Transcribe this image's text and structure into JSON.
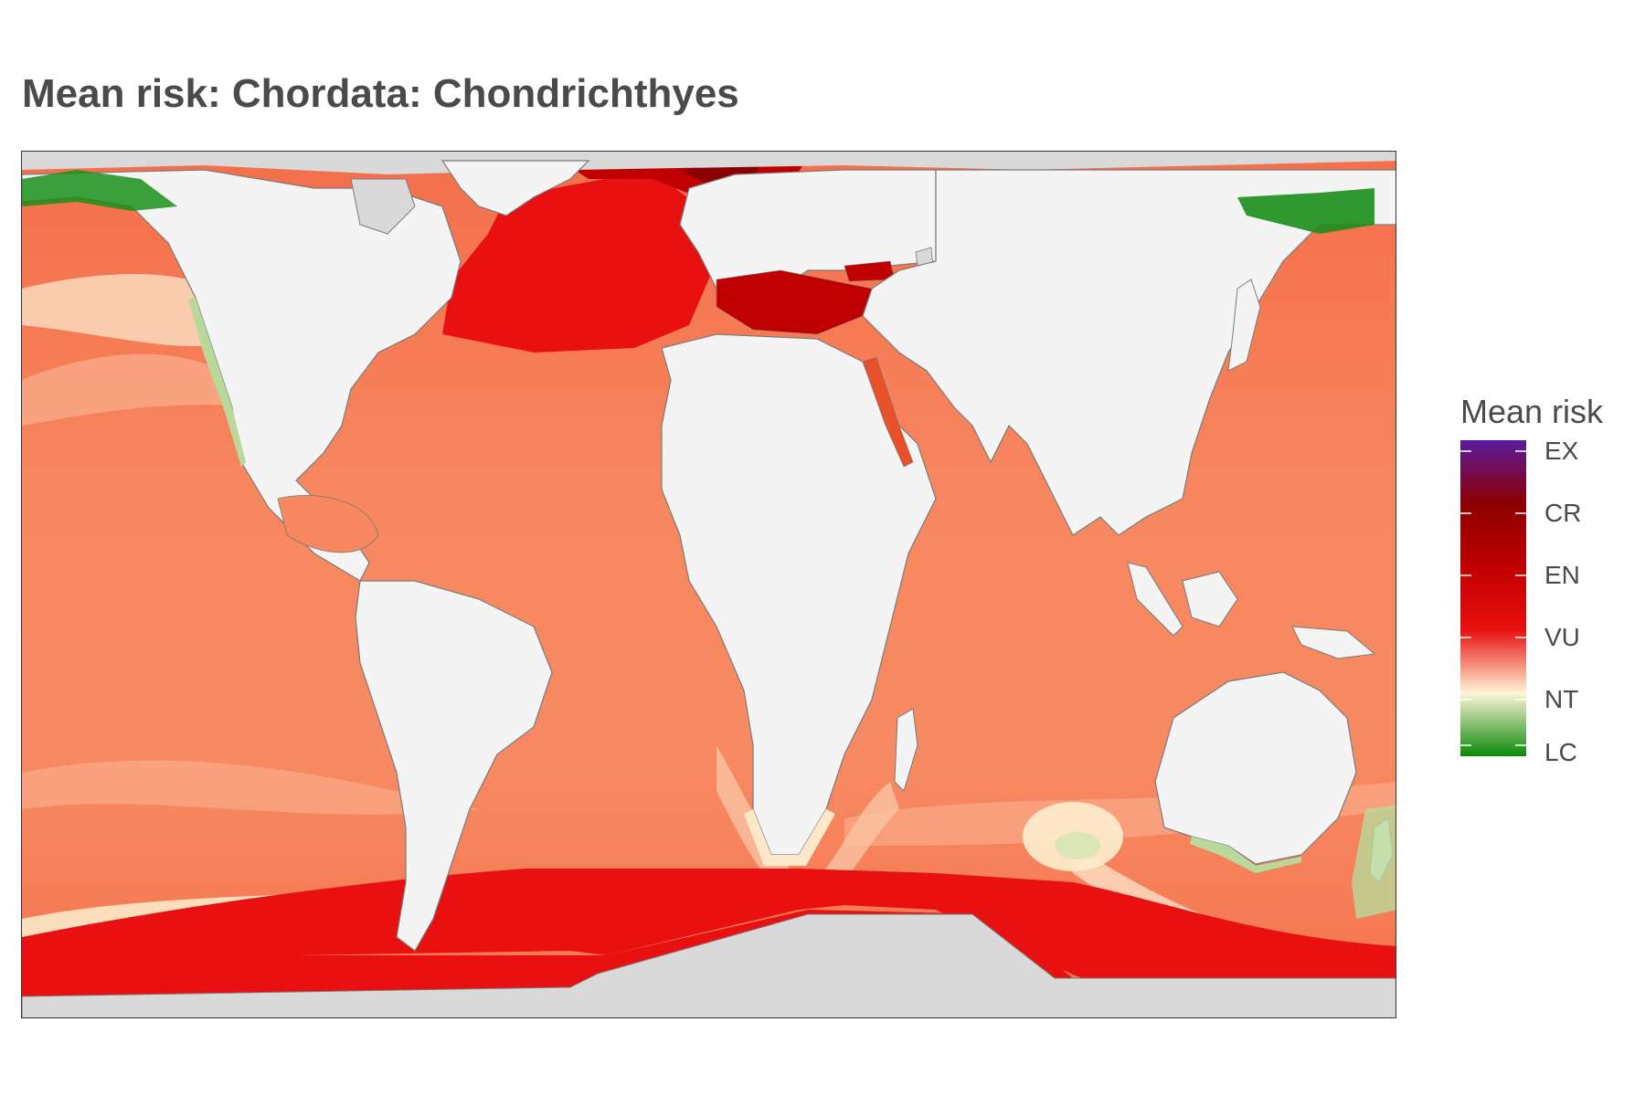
{
  "title": "Mean risk: Chordata: Chondrichthyes",
  "legend": {
    "title": "Mean risk",
    "labels": [
      "EX",
      "CR",
      "EN",
      "VU",
      "NT",
      "LC"
    ],
    "colors": [
      "#5a1a9e",
      "#8b0000",
      "#c00000",
      "#e81010",
      "#fff4d6",
      "#0a8a0a"
    ]
  },
  "map_colors": {
    "land": "#f4f4f4",
    "ice": "#d9d9d9",
    "ocean_base": "#f7875f",
    "ocean_light": "#fbb08f",
    "ocean_pale": "#fde0c4",
    "vu_red": "#e81010",
    "en_dark": "#c00000",
    "cr_dark": "#8b0000",
    "lc_green": "#1a8f1a",
    "nt_green": "#b9d99a",
    "coast": "#7a7a7a"
  }
}
